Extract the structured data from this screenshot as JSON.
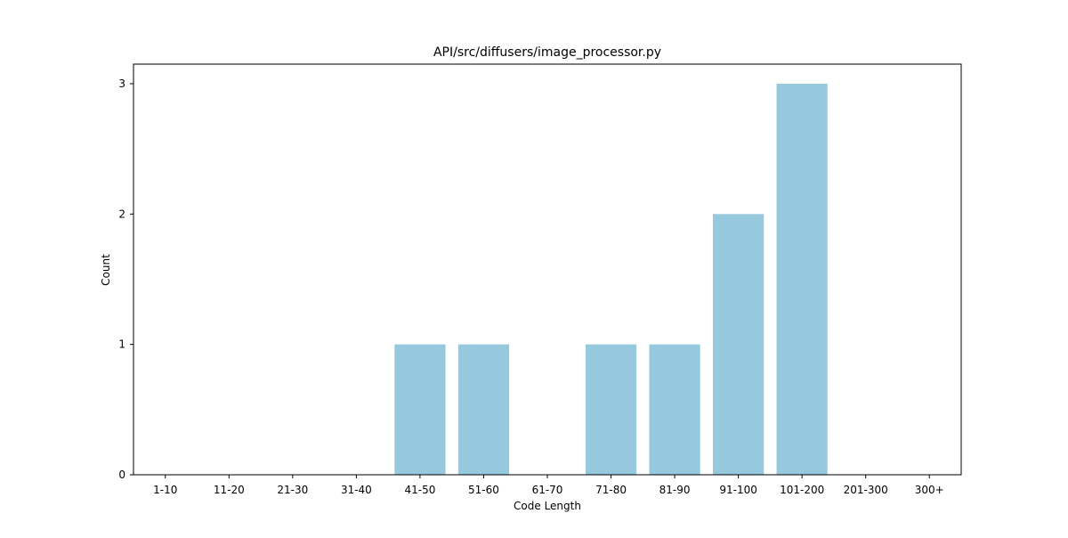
{
  "chart_data": {
    "type": "bar",
    "title": "API/src/diffusers/image_processor.py",
    "xlabel": "Code Length",
    "ylabel": "Count",
    "categories": [
      "1-10",
      "11-20",
      "21-30",
      "31-40",
      "41-50",
      "51-60",
      "61-70",
      "71-80",
      "81-90",
      "91-100",
      "101-200",
      "201-300",
      "300+"
    ],
    "values": [
      0,
      0,
      0,
      0,
      1,
      1,
      0,
      1,
      1,
      2,
      3,
      0,
      0
    ],
    "ylim": [
      0,
      3.15
    ],
    "yticks": [
      0,
      1,
      2,
      3
    ],
    "grid": false,
    "bar_color": "#96c9dd"
  }
}
